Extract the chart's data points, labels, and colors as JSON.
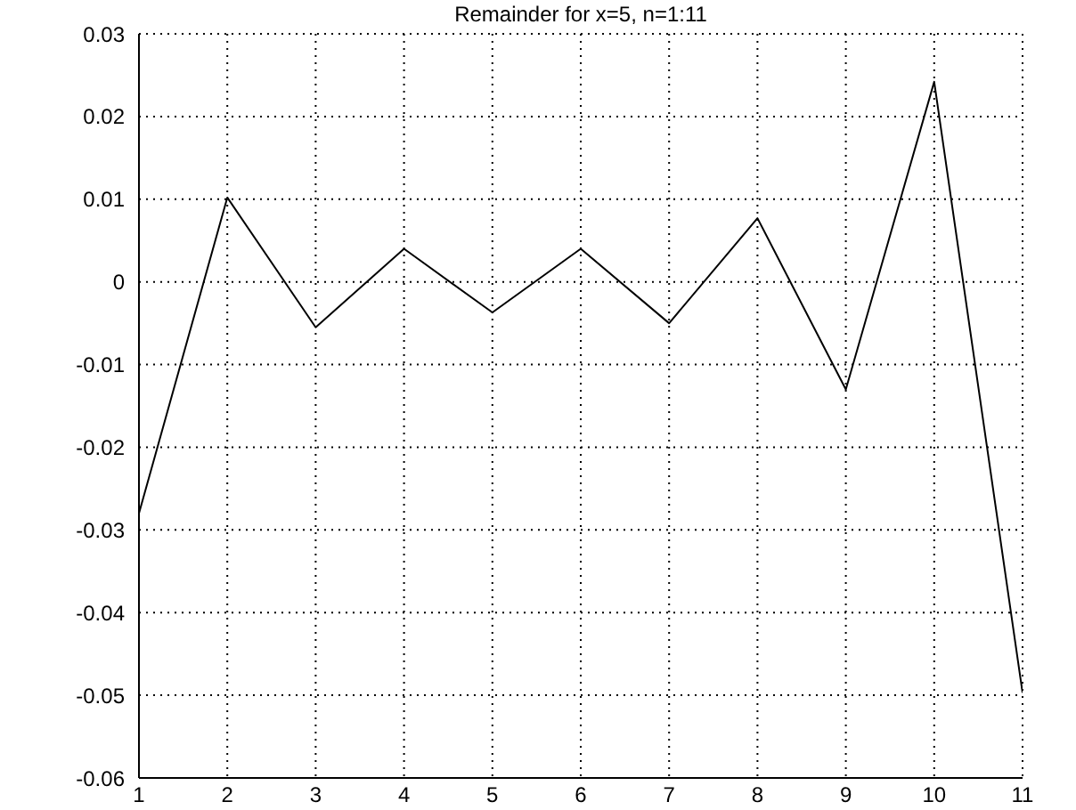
{
  "chart_data": {
    "type": "line",
    "title": "Remainder for x=5, n=1:11",
    "x": [
      1,
      2,
      3,
      4,
      5,
      6,
      7,
      8,
      9,
      10,
      11
    ],
    "series": [
      {
        "color": "#000000",
        "values": [
          -0.028,
          0.0102,
          -0.0055,
          0.004,
          -0.0037,
          0.004,
          -0.005,
          0.0077,
          -0.013,
          0.0242,
          -0.0497
        ]
      }
    ],
    "xlim": [
      1,
      11
    ],
    "xticks": [
      1,
      2,
      3,
      4,
      5,
      6,
      7,
      8,
      9,
      10,
      11
    ],
    "ylim": [
      -0.06,
      0.03
    ],
    "yticks": [
      -0.06,
      -0.05,
      -0.04,
      -0.03,
      -0.02,
      -0.01,
      0,
      0.01,
      0.02,
      0.03
    ],
    "grid": true,
    "legend": false,
    "marker": "none",
    "line_style": "solid"
  }
}
